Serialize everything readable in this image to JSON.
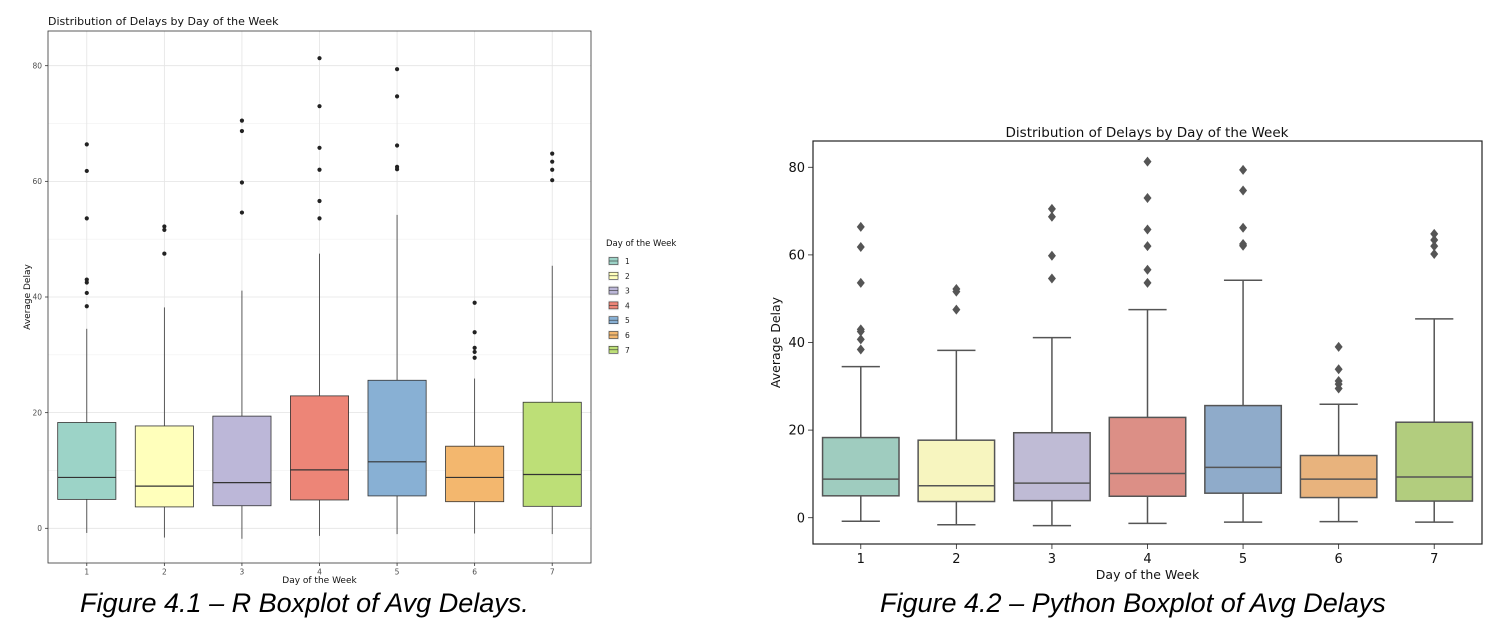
{
  "figures": [
    {
      "caption": "Figure 4.1 – R Boxplot of Avg Delays."
    },
    {
      "caption": "Figure 4.2 – Python Boxplot of Avg Delays"
    }
  ],
  "chart_data": [
    {
      "type": "boxplot",
      "style": "ggplot2 theme_bw",
      "title": "Distribution of Delays by Day of the Week",
      "xlabel": "Day of the Week",
      "ylabel": "Average Delay",
      "ylim": [
        -6,
        86
      ],
      "yticks": [
        0,
        20,
        40,
        60,
        80
      ],
      "grid": true,
      "legend": {
        "title": "Day of the Week",
        "placement": "right",
        "entries": [
          "1",
          "2",
          "3",
          "4",
          "5",
          "6",
          "7"
        ]
      },
      "boxes": [
        {
          "category": "1",
          "color": "#9cd3c7",
          "whisker_low": -0.8,
          "q1": 5.0,
          "median": 8.8,
          "q3": 18.3,
          "whisker_high": 34.5,
          "outliers": [
            38.4,
            40.7,
            42.5,
            43.0,
            53.6,
            61.8,
            66.4
          ]
        },
        {
          "category": "2",
          "color": "#ffffbb",
          "whisker_low": -1.6,
          "q1": 3.7,
          "median": 7.3,
          "q3": 17.7,
          "whisker_high": 38.2,
          "outliers": [
            47.5,
            51.6,
            52.2
          ]
        },
        {
          "category": "3",
          "color": "#bcb7d8",
          "whisker_low": -1.8,
          "q1": 3.9,
          "median": 7.9,
          "q3": 19.4,
          "whisker_high": 41.1,
          "outliers": [
            54.6,
            59.8,
            68.7,
            70.5
          ]
        },
        {
          "category": "4",
          "color": "#ed8577",
          "whisker_low": -1.3,
          "q1": 4.9,
          "median": 10.1,
          "q3": 22.9,
          "whisker_high": 47.5,
          "outliers": [
            53.6,
            56.6,
            62.0,
            65.8,
            73.0,
            81.3
          ]
        },
        {
          "category": "5",
          "color": "#88b0d4",
          "whisker_low": -1.0,
          "q1": 5.6,
          "median": 11.5,
          "q3": 25.6,
          "whisker_high": 54.2,
          "outliers": [
            62.1,
            62.5,
            66.2,
            74.7,
            79.4
          ]
        },
        {
          "category": "6",
          "color": "#f3b76e",
          "whisker_low": -0.9,
          "q1": 4.6,
          "median": 8.8,
          "q3": 14.2,
          "whisker_high": 25.9,
          "outliers": [
            29.5,
            30.5,
            31.2,
            33.9,
            39.0
          ]
        },
        {
          "category": "7",
          "color": "#bddf77",
          "whisker_low": -1.0,
          "q1": 3.8,
          "median": 9.3,
          "q3": 21.8,
          "whisker_high": 45.4,
          "outliers": [
            60.2,
            62.0,
            63.4,
            64.8
          ]
        }
      ]
    },
    {
      "type": "boxplot",
      "style": "seaborn",
      "title": "Distribution of Delays by Day of the Week",
      "xlabel": "Day of the Week",
      "ylabel": "Average Delay",
      "ylim": [
        -6,
        86
      ],
      "yticks": [
        0,
        20,
        40,
        60,
        80
      ],
      "grid": false,
      "boxes": [
        {
          "category": "1",
          "color": "#9fccbf",
          "whisker_low": -0.8,
          "q1": 5.0,
          "median": 8.8,
          "q3": 18.3,
          "whisker_high": 34.5,
          "outliers": [
            38.4,
            40.7,
            42.5,
            43.0,
            53.6,
            61.8,
            66.4
          ]
        },
        {
          "category": "2",
          "color": "#f7f5bf",
          "whisker_low": -1.6,
          "q1": 3.7,
          "median": 7.3,
          "q3": 17.7,
          "whisker_high": 38.2,
          "outliers": [
            47.5,
            51.6,
            52.2
          ]
        },
        {
          "category": "3",
          "color": "#bfbbd5",
          "whisker_low": -1.8,
          "q1": 3.9,
          "median": 7.9,
          "q3": 19.4,
          "whisker_high": 41.1,
          "outliers": [
            54.6,
            59.8,
            68.7,
            70.5
          ]
        },
        {
          "category": "4",
          "color": "#dc8f86",
          "whisker_low": -1.3,
          "q1": 4.9,
          "median": 10.1,
          "q3": 22.9,
          "whisker_high": 47.5,
          "outliers": [
            53.6,
            56.6,
            62.0,
            65.8,
            73.0,
            81.3
          ]
        },
        {
          "category": "5",
          "color": "#8fabca",
          "whisker_low": -1.0,
          "q1": 5.6,
          "median": 11.5,
          "q3": 25.6,
          "whisker_high": 54.2,
          "outliers": [
            62.1,
            62.5,
            66.2,
            74.7,
            79.4
          ]
        },
        {
          "category": "6",
          "color": "#e8b37d",
          "whisker_low": -0.9,
          "q1": 4.6,
          "median": 8.8,
          "q3": 14.2,
          "whisker_high": 25.9,
          "outliers": [
            29.5,
            30.5,
            31.2,
            33.9,
            39.0
          ]
        },
        {
          "category": "7",
          "color": "#b2cd7e",
          "whisker_low": -1.0,
          "q1": 3.8,
          "median": 9.3,
          "q3": 21.8,
          "whisker_high": 45.4,
          "outliers": [
            60.2,
            62.0,
            63.4,
            64.8
          ]
        }
      ]
    }
  ]
}
